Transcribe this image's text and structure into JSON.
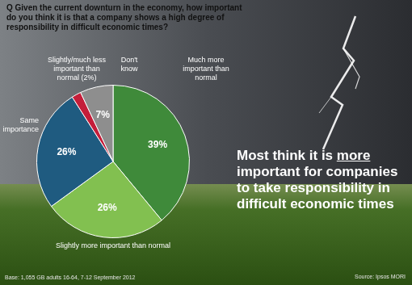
{
  "chart_data": {
    "type": "pie",
    "title": "Q Given the current downturn in the economy, how important do you think it is that a company shows a high degree of responsibility in difficult economic times?",
    "annotations": [
      "Most think it is more important for companies to take responsibility in difficult economic times"
    ],
    "base": "Base: 1,055 GB adults 16-64, 7-12 September 2012",
    "source": "Source: Ipsos MORI",
    "categories": [
      "Much more important than normal",
      "Slightly more important than normal",
      "Same importance",
      "Slightly/much less important than normal (2%)",
      "Don't know"
    ],
    "values": [
      39,
      26,
      26,
      2,
      7
    ],
    "value_labels": [
      "39%",
      "26%",
      "26%",
      null,
      "7%"
    ],
    "colors": [
      "#3f8a3a",
      "#82c050",
      "#1f5b80",
      "#c41e3a",
      "#8e8e8e"
    ],
    "data_labels": true
  }
}
